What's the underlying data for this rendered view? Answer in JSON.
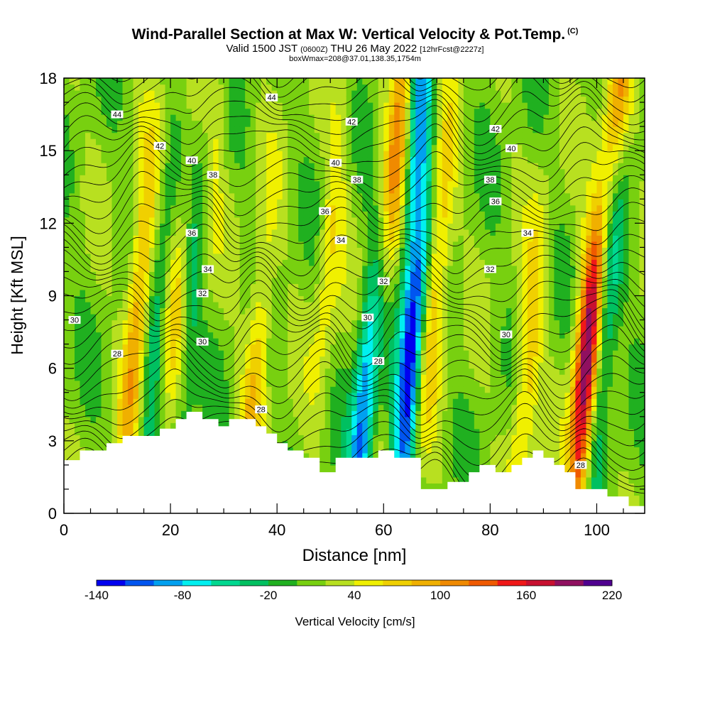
{
  "header": {
    "title": "Wind-Parallel Section at Max W: Vertical Velocity & Pot.Temp.",
    "copyright": "(C)",
    "valid_prefix": "Valid 1500 JST",
    "valid_utc": "(0600Z)",
    "valid_date": "THU 26 May 2022",
    "forecast": "[12hrFcst@2227z]",
    "box_info": "boxWmax=208@37.01,138.35,1754m"
  },
  "chart_data": {
    "type": "heatmap",
    "xlabel": "Distance [nm]",
    "ylabel": "Height [Kft MSL]",
    "xlim": [
      0,
      109
    ],
    "ylim": [
      0,
      18
    ],
    "x_ticks": [
      0,
      20,
      40,
      60,
      80,
      100
    ],
    "y_ticks": [
      0,
      3,
      6,
      9,
      12,
      15,
      18
    ],
    "colorbar": {
      "label": "Vertical Velocity [cm/s]",
      "min": -140,
      "max": 220,
      "step": 20,
      "tick_labels": [
        "-140",
        "-80",
        "-20",
        "40",
        "100",
        "160",
        "220"
      ],
      "tick_values": [
        -140,
        -80,
        -20,
        40,
        100,
        160,
        220
      ],
      "colors": [
        "#0000f0",
        "#0055f0",
        "#00a0f0",
        "#00f0f0",
        "#00d890",
        "#00c060",
        "#20b020",
        "#78d010",
        "#b8e020",
        "#f0f000",
        "#f0d000",
        "#f0b000",
        "#f08a00",
        "#f05a00",
        "#f01818",
        "#c81030",
        "#901060",
        "#500090"
      ]
    },
    "terrain_x": [
      0,
      3,
      3,
      8,
      8,
      11,
      11,
      18,
      18,
      21,
      21,
      23,
      23,
      26,
      26,
      29,
      29,
      31,
      31,
      36,
      36,
      38,
      38,
      40,
      40,
      42,
      42,
      45,
      45,
      48,
      48,
      51,
      51,
      59,
      59,
      62,
      62,
      67,
      67,
      72,
      72,
      76,
      76,
      78,
      78,
      81,
      81,
      84,
      84,
      86,
      86,
      88,
      88,
      90,
      90,
      92,
      92,
      94,
      94,
      96,
      96,
      102,
      102,
      106,
      106,
      109
    ],
    "terrain_y": [
      2.2,
      2.2,
      2.6,
      2.6,
      2.9,
      2.9,
      3.2,
      3.2,
      3.5,
      3.5,
      3.9,
      3.9,
      4.2,
      4.2,
      3.9,
      3.9,
      3.6,
      3.6,
      3.9,
      3.9,
      3.6,
      3.6,
      3.3,
      3.3,
      2.9,
      2.9,
      2.6,
      2.6,
      2.3,
      2.3,
      1.7,
      1.7,
      2.3,
      2.3,
      2.6,
      2.6,
      2.3,
      2.3,
      1.0,
      1.0,
      1.3,
      1.3,
      1.7,
      1.7,
      2.0,
      2.0,
      1.7,
      1.7,
      2.0,
      2.0,
      2.3,
      2.3,
      2.6,
      2.6,
      2.3,
      2.3,
      2.0,
      2.0,
      1.7,
      1.7,
      1.0,
      1.0,
      0.7,
      0.7,
      0.3,
      0.3
    ],
    "updrafts": [
      {
        "x": 14,
        "y": 8.5,
        "w_peak": 110
      },
      {
        "x": 21,
        "y": 8.5,
        "w_peak": 60
      },
      {
        "x": 27,
        "y": 13,
        "w_peak": 70
      },
      {
        "x": 36,
        "y": 5.8,
        "w_peak": 80
      },
      {
        "x": 50,
        "y": 11,
        "w_peak": 60
      },
      {
        "x": 63,
        "y": 16.5,
        "w_peak": 110
      },
      {
        "x": 70,
        "y": 10,
        "w_peak": 90
      },
      {
        "x": 87,
        "y": 6,
        "w_peak": 80
      },
      {
        "x": 98,
        "y": 6,
        "w_peak": 208
      },
      {
        "x": 104,
        "y": 16.5,
        "w_peak": 100
      }
    ],
    "downdrafts": [
      {
        "x": 17,
        "y": 7,
        "w_peak": -40
      },
      {
        "x": 25,
        "y": 10,
        "w_peak": -60
      },
      {
        "x": 56,
        "y": 3.5,
        "w_peak": -110
      },
      {
        "x": 65,
        "y": 6.2,
        "w_peak": -140
      },
      {
        "x": 67,
        "y": 17,
        "w_peak": -90
      },
      {
        "x": 102,
        "y": 9,
        "w_peak": -80
      }
    ],
    "theta_contour_labels": [
      {
        "value": "44",
        "x": 10,
        "y": 16.5
      },
      {
        "value": "44",
        "x": 39,
        "y": 17.2
      },
      {
        "value": "42",
        "x": 18,
        "y": 15.2
      },
      {
        "value": "42",
        "x": 54,
        "y": 16.2
      },
      {
        "value": "42",
        "x": 81,
        "y": 15.9
      },
      {
        "value": "40",
        "x": 24,
        "y": 14.6
      },
      {
        "value": "40",
        "x": 51,
        "y": 14.5
      },
      {
        "value": "40",
        "x": 84,
        "y": 15.1
      },
      {
        "value": "38",
        "x": 28,
        "y": 14
      },
      {
        "value": "38",
        "x": 55,
        "y": 13.8
      },
      {
        "value": "38",
        "x": 80,
        "y": 13.8
      },
      {
        "value": "36",
        "x": 49,
        "y": 12.5
      },
      {
        "value": "36",
        "x": 81,
        "y": 12.9
      },
      {
        "value": "36",
        "x": 24,
        "y": 11.6
      },
      {
        "value": "34",
        "x": 52,
        "y": 11.3
      },
      {
        "value": "34",
        "x": 87,
        "y": 11.6
      },
      {
        "value": "34",
        "x": 27,
        "y": 10.1
      },
      {
        "value": "32",
        "x": 60,
        "y": 9.6
      },
      {
        "value": "32",
        "x": 80,
        "y": 10.1
      },
      {
        "value": "32",
        "x": 26,
        "y": 9.1
      },
      {
        "value": "30",
        "x": 2,
        "y": 8
      },
      {
        "value": "30",
        "x": 57,
        "y": 8.1
      },
      {
        "value": "30",
        "x": 83,
        "y": 7.4
      },
      {
        "value": "30",
        "x": 26,
        "y": 7.1
      },
      {
        "value": "28",
        "x": 10,
        "y": 6.6
      },
      {
        "value": "28",
        "x": 59,
        "y": 6.3
      },
      {
        "value": "28",
        "x": 37,
        "y": 4.3
      },
      {
        "value": "28",
        "x": 97,
        "y": 2
      }
    ]
  }
}
